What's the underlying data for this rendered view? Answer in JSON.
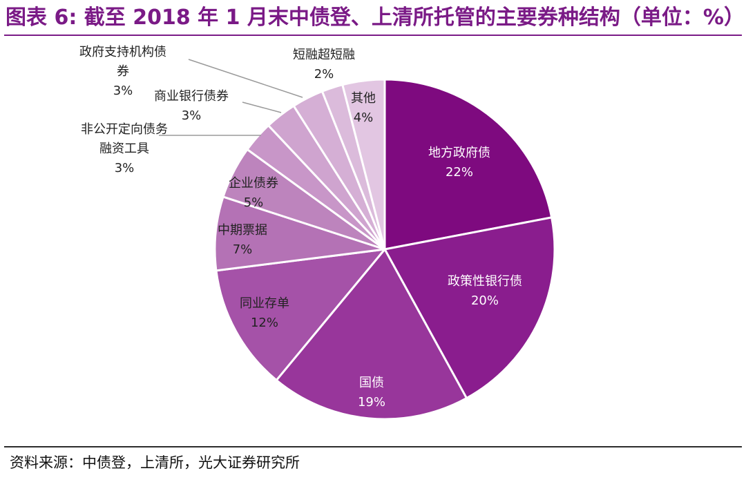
{
  "title": "图表 6: 截至 2018 年 1 月末中债登、上清所托管的主要券种结构（单位：%）",
  "source": "资料来源：中债登，上清所，光大证券研究所",
  "colors": {
    "title": "#7a1a86",
    "divider": "#ffffff",
    "leader_line": "#9a9a9a",
    "label_dark": "#222222",
    "label_light": "#ffffff"
  },
  "chart_data": {
    "type": "pie",
    "unit": "%",
    "start_angle_deg": 0,
    "direction": "clockwise",
    "slices": [
      {
        "name": "地方政府债",
        "label": "22%",
        "value": 22,
        "color": "#7e0a7f",
        "label_color": "light",
        "label_mode": "inside"
      },
      {
        "name": "政策性银行债",
        "label": "20%",
        "value": 20,
        "color": "#8a1d8e",
        "label_color": "light",
        "label_mode": "inside"
      },
      {
        "name": "国债",
        "label": "19%",
        "value": 19,
        "color": "#98369b",
        "label_color": "light",
        "label_mode": "inside"
      },
      {
        "name": "同业存单",
        "label": "12%",
        "value": 12,
        "color": "#a552a8",
        "label_color": "dark",
        "label_mode": "inside"
      },
      {
        "name": "中期票据",
        "label": "7%",
        "value": 7,
        "color": "#b472b5",
        "label_color": "dark",
        "label_mode": "inside"
      },
      {
        "name": "企业债券",
        "label": "5%",
        "value": 5,
        "color": "#bd84bd",
        "label_color": "dark",
        "label_mode": "inside"
      },
      {
        "name": "非公开定向债务融资工具",
        "name_lines": [
          "非公开定向债务",
          "融资工具"
        ],
        "label": "3%",
        "value": 3,
        "color": "#c896c8",
        "label_color": "dark",
        "label_mode": "leader"
      },
      {
        "name": "商业银行债券",
        "label": "3%",
        "value": 3,
        "color": "#cfa4cf",
        "label_color": "dark",
        "label_mode": "leader"
      },
      {
        "name": "政府支持机构债券",
        "name_lines": [
          "政府支持机构债",
          "券"
        ],
        "label": "3%",
        "value": 3,
        "color": "#d5afd5",
        "label_color": "dark",
        "label_mode": "leader"
      },
      {
        "name": "短融超短融",
        "label": "2%",
        "value": 2,
        "color": "#dbbbdb",
        "label_color": "dark",
        "label_mode": "above"
      },
      {
        "name": "其他",
        "label": "4%",
        "value": 4,
        "color": "#e2c6e2",
        "label_color": "dark",
        "label_mode": "inside"
      }
    ]
  }
}
